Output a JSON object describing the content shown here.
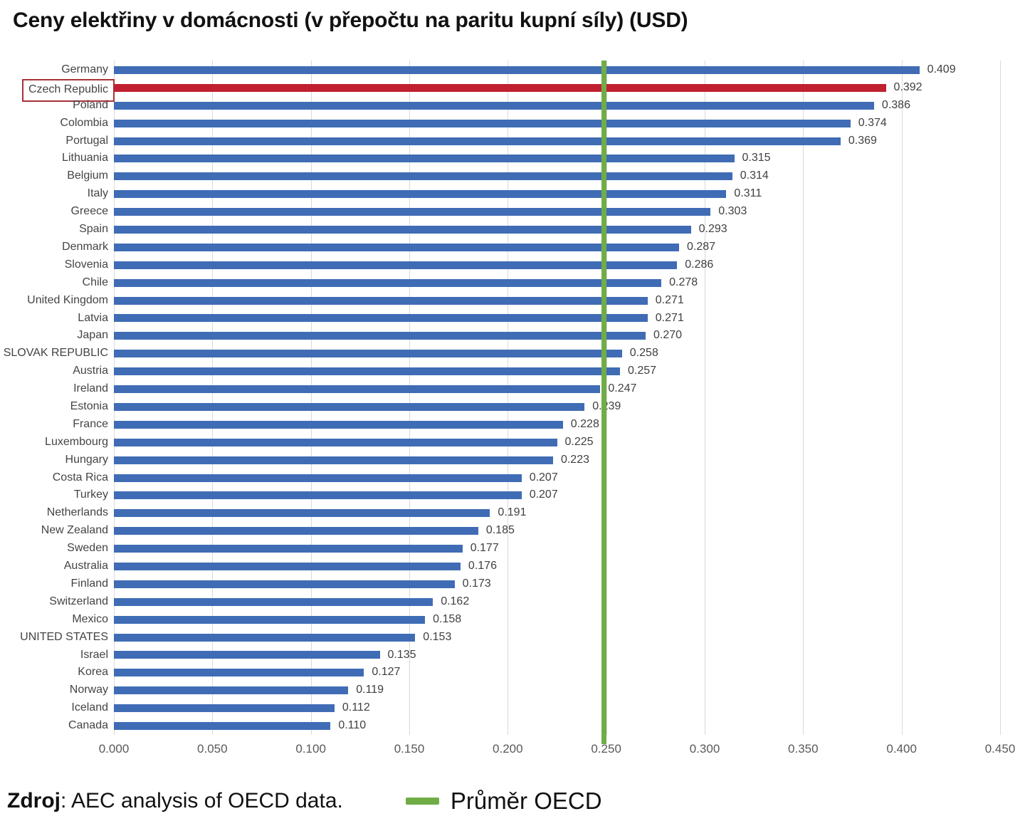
{
  "title": "Ceny elektřiny v domácnosti (v přepočtu na paritu kupní síly) (USD)",
  "source": {
    "bold": "Zdroj",
    "rest": ": AEC analysis of OECD data."
  },
  "legend": {
    "oecd_avg_label": "Průměr OECD"
  },
  "colors": {
    "bar": "#3f6cb5",
    "highlight_bar": "#c0202f",
    "highlight_box_border": "#a93238",
    "oecd_line": "#70ad47",
    "gridline": "#d9d9d9",
    "label_text": "#444444",
    "tick_text": "#595959"
  },
  "chart_data": {
    "type": "bar",
    "orientation": "horizontal",
    "title": "Ceny elektřiny v domácnosti (v přepočtu na paritu kupní síly) (USD)",
    "categories": [
      "Germany",
      "Czech Republic",
      "Poland",
      "Colombia",
      "Portugal",
      "Lithuania",
      "Belgium",
      "Italy",
      "Greece",
      "Spain",
      "Denmark",
      "Slovenia",
      "Chile",
      "United Kingdom",
      "Latvia",
      "Japan",
      "SLOVAK REPUBLIC",
      "Austria",
      "Ireland",
      "Estonia",
      "France",
      "Luxembourg",
      "Hungary",
      "Costa Rica",
      "Turkey",
      "Netherlands",
      "New Zealand",
      "Sweden",
      "Australia",
      "Finland",
      "Switzerland",
      "Mexico",
      "UNITED STATES",
      "Israel",
      "Korea",
      "Norway",
      "Iceland",
      "Canada"
    ],
    "values": [
      0.409,
      0.392,
      0.386,
      0.374,
      0.369,
      0.315,
      0.314,
      0.311,
      0.303,
      0.293,
      0.287,
      0.286,
      0.278,
      0.271,
      0.271,
      0.27,
      0.258,
      0.257,
      0.247,
      0.239,
      0.228,
      0.225,
      0.223,
      0.207,
      0.207,
      0.191,
      0.185,
      0.177,
      0.176,
      0.173,
      0.162,
      0.158,
      0.153,
      0.135,
      0.127,
      0.119,
      0.112,
      0.11
    ],
    "highlight_category": "Czech Republic",
    "xlim": [
      0,
      0.45
    ],
    "x_ticks": [
      0.0,
      0.05,
      0.1,
      0.15,
      0.2,
      0.25,
      0.3,
      0.35,
      0.4,
      0.45
    ],
    "x_tick_labels": [
      "0.000",
      "0.050",
      "0.100",
      "0.150",
      "0.200",
      "0.250",
      "0.300",
      "0.350",
      "0.400",
      "0.450"
    ],
    "oecd_average_line": 0.2485,
    "grid": true,
    "value_label_decimals": 3,
    "legend_position": "bottom",
    "legend_entries": [
      "Průměr OECD"
    ]
  }
}
